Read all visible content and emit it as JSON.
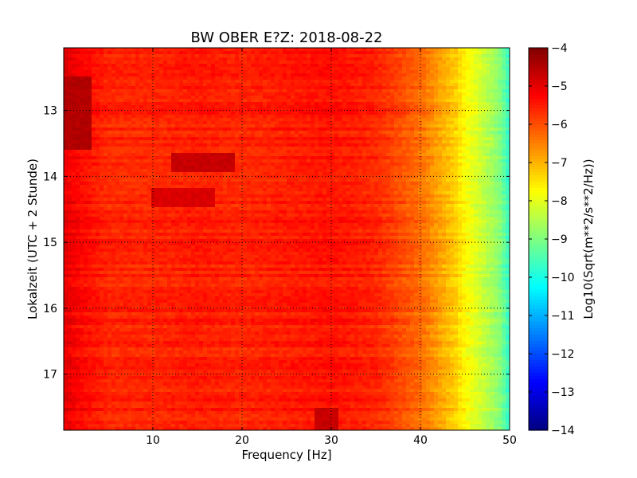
{
  "chart_data": {
    "type": "heatmap",
    "title": "BW OBER E?Z: 2018-08-22",
    "xlabel": "Frequency [Hz]",
    "ylabel": "Lokalzeit (UTC + 2 Stunde)",
    "xlim": [
      0,
      50
    ],
    "ylim": [
      12.05,
      17.85
    ],
    "y_inverted": true,
    "x_ticks": [
      10,
      20,
      30,
      40,
      50
    ],
    "y_ticks": [
      13,
      14,
      15,
      16,
      17
    ],
    "grid": true,
    "colormap": "jet",
    "colorbar": {
      "label": "Log10(Sqrt(m**2/s**2/Hz))",
      "min": -14,
      "max": -4,
      "ticks": [
        -4,
        -5,
        -6,
        -7,
        -8,
        -9,
        -10,
        -11,
        -12,
        -13,
        -14
      ]
    },
    "profile_by_frequency": {
      "frequency_hz": [
        0,
        2,
        5,
        10,
        15,
        20,
        25,
        30,
        35,
        38,
        40,
        42,
        44,
        45,
        46,
        47,
        48,
        49,
        50
      ],
      "level": [
        -5.0,
        -5.3,
        -5.6,
        -5.6,
        -5.5,
        -5.6,
        -5.5,
        -5.4,
        -5.6,
        -6.0,
        -6.3,
        -6.8,
        -7.3,
        -7.7,
        -8.0,
        -8.3,
        -8.6,
        -9.0,
        -9.8
      ]
    },
    "features": [
      {
        "frequency_hz": [
          0,
          3
        ],
        "time": [
          12.5,
          13.6
        ],
        "level": -4.5
      },
      {
        "frequency_hz": [
          12,
          19
        ],
        "time": [
          13.65,
          13.95
        ],
        "level": -4.7
      },
      {
        "frequency_hz": [
          10,
          17
        ],
        "time": [
          14.2,
          14.45
        ],
        "level": -4.9
      },
      {
        "frequency_hz": [
          28,
          31
        ],
        "time": [
          17.5,
          17.85
        ],
        "level": -4.7
      }
    ]
  }
}
